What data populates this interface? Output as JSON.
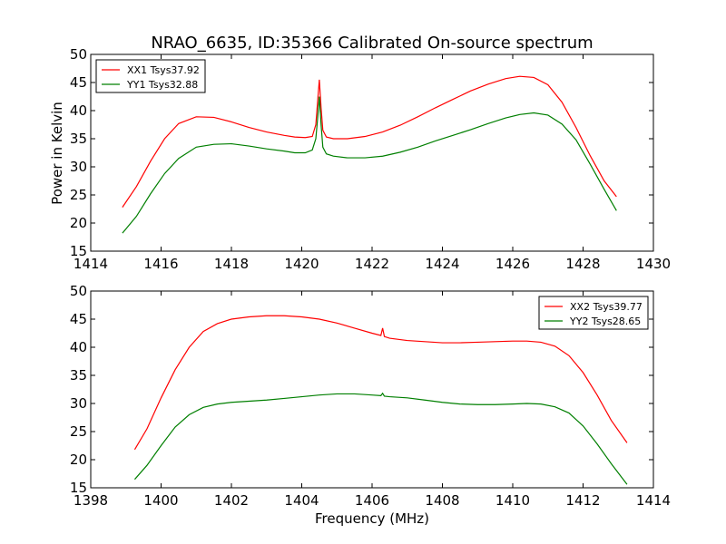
{
  "figure": {
    "title": "NRAO_6635, ID:35366 Calibrated On-source spectrum",
    "ylabel": "Power in Kelvin",
    "xlabel": "Frequency (MHz)"
  },
  "chart_data": [
    {
      "type": "line",
      "xlim": [
        1414,
        1430
      ],
      "ylim": [
        15,
        50
      ],
      "xticks": [
        1414,
        1416,
        1418,
        1420,
        1422,
        1424,
        1426,
        1428,
        1430
      ],
      "yticks": [
        15,
        20,
        25,
        30,
        35,
        40,
        45,
        50
      ],
      "legend": "top-left",
      "grid": false,
      "series": [
        {
          "name": "XX1 Tsys37.92",
          "color": "#ff0000",
          "x": [
            1414.9,
            1415.3,
            1415.7,
            1416.1,
            1416.5,
            1417.0,
            1417.5,
            1418.0,
            1418.5,
            1419.0,
            1419.5,
            1419.8,
            1420.1,
            1420.3,
            1420.4,
            1420.45,
            1420.5,
            1420.55,
            1420.6,
            1420.7,
            1420.9,
            1421.3,
            1421.8,
            1422.3,
            1422.8,
            1423.3,
            1423.8,
            1424.3,
            1424.8,
            1425.3,
            1425.8,
            1426.2,
            1426.6,
            1427.0,
            1427.4,
            1427.8,
            1428.2,
            1428.6,
            1428.95
          ],
          "y": [
            22.8,
            26.5,
            31.0,
            35.0,
            37.7,
            38.9,
            38.8,
            38.0,
            37.0,
            36.2,
            35.6,
            35.3,
            35.2,
            35.4,
            37.5,
            41.5,
            45.5,
            40.5,
            36.5,
            35.3,
            35.0,
            35.0,
            35.4,
            36.2,
            37.4,
            38.9,
            40.5,
            42.0,
            43.5,
            44.7,
            45.7,
            46.1,
            45.9,
            44.6,
            41.5,
            37.0,
            32.0,
            27.5,
            24.7
          ]
        },
        {
          "name": "YY1 Tsys32.88",
          "color": "#007f00",
          "x": [
            1414.9,
            1415.3,
            1415.7,
            1416.1,
            1416.5,
            1417.0,
            1417.5,
            1418.0,
            1418.5,
            1419.0,
            1419.5,
            1419.8,
            1420.1,
            1420.3,
            1420.4,
            1420.45,
            1420.5,
            1420.55,
            1420.6,
            1420.7,
            1420.9,
            1421.3,
            1421.8,
            1422.3,
            1422.8,
            1423.3,
            1423.8,
            1424.3,
            1424.8,
            1425.3,
            1425.8,
            1426.2,
            1426.6,
            1427.0,
            1427.4,
            1427.8,
            1428.2,
            1428.6,
            1428.95
          ],
          "y": [
            18.2,
            21.2,
            25.2,
            28.8,
            31.5,
            33.5,
            34.0,
            34.1,
            33.7,
            33.2,
            32.8,
            32.5,
            32.5,
            33.0,
            35.0,
            38.5,
            42.5,
            37.5,
            33.5,
            32.3,
            31.9,
            31.6,
            31.6,
            31.9,
            32.6,
            33.5,
            34.6,
            35.6,
            36.6,
            37.7,
            38.7,
            39.3,
            39.6,
            39.2,
            37.6,
            34.8,
            30.5,
            26.0,
            22.2
          ]
        }
      ]
    },
    {
      "type": "line",
      "xlim": [
        1398,
        1414
      ],
      "ylim": [
        15,
        50
      ],
      "xticks": [
        1398,
        1400,
        1402,
        1404,
        1406,
        1408,
        1410,
        1412,
        1414
      ],
      "yticks": [
        15,
        20,
        25,
        30,
        35,
        40,
        45,
        50
      ],
      "legend": "top-right",
      "grid": false,
      "series": [
        {
          "name": "XX2 Tsys39.77",
          "color": "#ff0000",
          "x": [
            1399.25,
            1399.6,
            1400.0,
            1400.4,
            1400.8,
            1401.2,
            1401.6,
            1402.0,
            1402.5,
            1403.0,
            1403.5,
            1404.0,
            1404.5,
            1405.0,
            1405.5,
            1406.0,
            1406.25,
            1406.3,
            1406.35,
            1406.5,
            1407.0,
            1407.5,
            1408.0,
            1408.5,
            1409.0,
            1409.5,
            1410.0,
            1410.4,
            1410.8,
            1411.2,
            1411.6,
            1412.0,
            1412.4,
            1412.8,
            1413.25
          ],
          "y": [
            21.8,
            25.5,
            31.0,
            36.0,
            40.0,
            42.8,
            44.2,
            45.0,
            45.4,
            45.6,
            45.6,
            45.4,
            45.0,
            44.3,
            43.4,
            42.5,
            42.1,
            43.4,
            41.9,
            41.6,
            41.2,
            41.0,
            40.8,
            40.8,
            40.9,
            41.0,
            41.1,
            41.1,
            40.9,
            40.2,
            38.5,
            35.5,
            31.5,
            27.0,
            23.0
          ]
        },
        {
          "name": "YY2 Tsys28.65",
          "color": "#007f00",
          "x": [
            1399.25,
            1399.6,
            1400.0,
            1400.4,
            1400.8,
            1401.2,
            1401.6,
            1402.0,
            1402.5,
            1403.0,
            1403.5,
            1404.0,
            1404.5,
            1405.0,
            1405.5,
            1406.0,
            1406.25,
            1406.3,
            1406.35,
            1406.5,
            1407.0,
            1407.5,
            1408.0,
            1408.5,
            1409.0,
            1409.5,
            1410.0,
            1410.4,
            1410.8,
            1411.2,
            1411.6,
            1412.0,
            1412.4,
            1412.8,
            1413.25
          ],
          "y": [
            16.5,
            19.0,
            22.5,
            25.8,
            28.0,
            29.3,
            29.9,
            30.2,
            30.4,
            30.6,
            30.9,
            31.2,
            31.5,
            31.7,
            31.7,
            31.5,
            31.4,
            31.8,
            31.3,
            31.2,
            31.0,
            30.6,
            30.2,
            29.9,
            29.8,
            29.8,
            29.9,
            30.0,
            29.9,
            29.4,
            28.3,
            26.0,
            22.8,
            19.3,
            15.6
          ]
        }
      ]
    }
  ]
}
